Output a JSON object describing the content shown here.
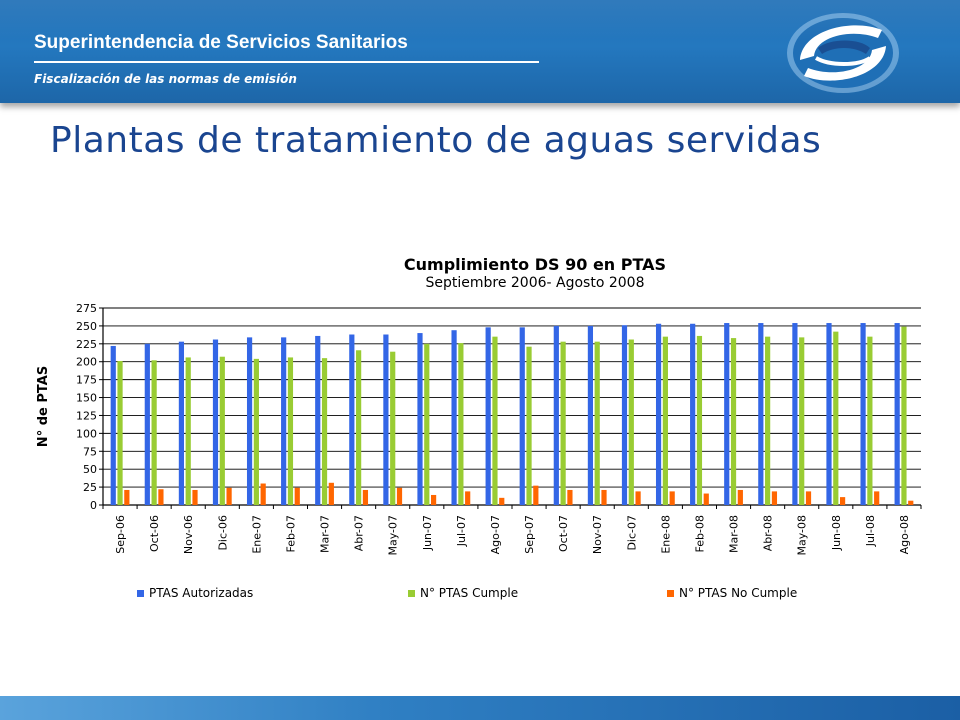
{
  "header": {
    "org_name": "Superintendencia de Servicios Sanitarios",
    "subtitle": "Fiscalización de las normas de emisión",
    "logo_icon": "sss-logo-icon"
  },
  "page": {
    "title": "Plantas de tratamiento de aguas servidas"
  },
  "colors": {
    "header_blue": "#1f6fb6",
    "title_blue": "#1a4590",
    "series_autorizadas": "#3366e6",
    "series_cumple": "#99cc33",
    "series_no_cumple": "#ff6600"
  },
  "chart_data": {
    "type": "bar",
    "title": "Cumplimiento DS 90 en PTAS",
    "subtitle": "Septiembre 2006- Agosto 2008",
    "xlabel": "",
    "ylabel": "N° de PTAS",
    "ylim": [
      0,
      275
    ],
    "yticks": [
      0,
      25,
      50,
      75,
      100,
      125,
      150,
      175,
      200,
      225,
      250,
      275
    ],
    "grid": true,
    "legend_position": "bottom",
    "categories": [
      "Sep-06",
      "Oct-06",
      "Nov-06",
      "Dic-06",
      "Ene-07",
      "Feb-07",
      "Mar-07",
      "Abr-07",
      "May-07",
      "Jun-07",
      "Jul-07",
      "Ago-07",
      "Sep-07",
      "Oct-07",
      "Nov-07",
      "Dic-07",
      "Ene-08",
      "Feb-08",
      "Mar-08",
      "Abr-08",
      "May-08",
      "Jun-08",
      "Jul-08",
      "Ago-08"
    ],
    "series": [
      {
        "name": "PTAS Autorizadas",
        "color": "#3366e6",
        "values": [
          222,
          225,
          228,
          231,
          234,
          234,
          236,
          238,
          238,
          240,
          244,
          248,
          248,
          250,
          250,
          251,
          253,
          253,
          254,
          254,
          254,
          254,
          254,
          254
        ]
      },
      {
        "name": "N° PTAS Cumple",
        "color": "#99cc33",
        "values": [
          201,
          202,
          206,
          207,
          204,
          206,
          205,
          216,
          214,
          225,
          226,
          235,
          221,
          228,
          228,
          231,
          235,
          236,
          233,
          235,
          234,
          242,
          235,
          249
        ]
      },
      {
        "name": "N° PTAS   No Cumple",
        "color": "#ff6600",
        "values": [
          21,
          22,
          21,
          24,
          30,
          24,
          31,
          21,
          24,
          14,
          19,
          10,
          27,
          21,
          21,
          19,
          19,
          16,
          21,
          19,
          19,
          11,
          19,
          6
        ]
      }
    ]
  }
}
